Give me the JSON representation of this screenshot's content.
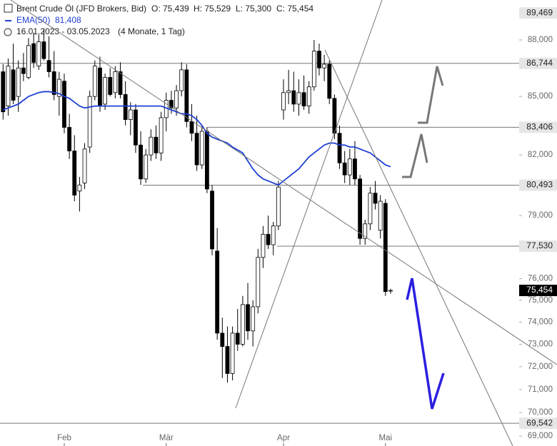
{
  "header": {
    "instrument": "Brent Crude Öl (JFD Brokers, Bid)",
    "open": "O: 75,439",
    "high": "H: 75,529",
    "low": "L: 75,300",
    "close": "C: 75,454",
    "range": "16.01.2023 - 03.05.2023",
    "span": "(4 Monate, 1 Tag)"
  },
  "chart_data": {
    "type": "candlestick",
    "log_scale": true,
    "ylim": [
      68578,
      90186
    ],
    "yticks": [
      {
        "value": 69000,
        "label": "69,000"
      },
      {
        "value": 70000,
        "label": "70,000"
      },
      {
        "value": 71000,
        "label": "71,000"
      },
      {
        "value": 72000,
        "label": "72,000"
      },
      {
        "value": 73000,
        "label": "73,000"
      },
      {
        "value": 74000,
        "label": "74,000"
      },
      {
        "value": 75000,
        "label": "75,000"
      },
      {
        "value": 76000,
        "label": "76,000"
      },
      {
        "value": 79000,
        "label": "79,000"
      },
      {
        "value": 82000,
        "label": "82,000"
      },
      {
        "value": 85000,
        "label": "85,000"
      },
      {
        "value": 88000,
        "label": "88,000"
      }
    ],
    "categories": [
      null,
      null,
      null,
      null,
      null,
      null,
      null,
      null,
      null,
      null,
      null,
      null,
      "Feb",
      null,
      null,
      null,
      null,
      null,
      null,
      null,
      null,
      null,
      null,
      null,
      null,
      null,
      null,
      null,
      null,
      null,
      null,
      null,
      "Mär",
      null,
      null,
      null,
      null,
      null,
      null,
      null,
      null,
      null,
      null,
      null,
      null,
      null,
      null,
      null,
      null,
      null,
      null,
      null,
      null,
      null,
      null,
      "Apr",
      null,
      null,
      null,
      null,
      null,
      null,
      null,
      null,
      null,
      null,
      null,
      null,
      null,
      null,
      null,
      null,
      null,
      null,
      null,
      "Mai",
      null
    ],
    "series": [
      {
        "name": "Brent Crude Öl (JFD Brokers, Bid)",
        "open": [
          86300,
          84500,
          86400,
          85000,
          86500,
          86000,
          87800,
          86600,
          87900,
          86900,
          86300,
          85000,
          85800,
          83400,
          82200,
          80200,
          80600,
          82400,
          85000,
          86500,
          84600,
          86000,
          85200,
          86300,
          85100,
          83800,
          84300,
          82500,
          80800,
          82000,
          82900,
          82100,
          83900,
          84800,
          84400,
          85300,
          86400,
          83700,
          83100,
          81500,
          83200,
          80200,
          77300,
          73500,
          72900,
          71700,
          73500,
          73000,
          74800,
          73600,
          74700,
          77000,
          78100,
          77600,
          78500,
          84300,
          85200,
          85300,
          84600,
          85200,
          84500,
          85500,
          87400,
          86500,
          86700,
          84900,
          83100,
          81600,
          81000,
          81800,
          80800,
          77900,
          78600,
          80100,
          78300,
          79600,
          75439
        ],
        "high": [
          86700,
          87000,
          87800,
          86900,
          87300,
          88100,
          88400,
          88300,
          88600,
          88200,
          87400,
          86300,
          86200,
          84100,
          83000,
          80900,
          82600,
          85300,
          86900,
          87100,
          86200,
          86500,
          86600,
          86800,
          85800,
          84700,
          84600,
          83200,
          82300,
          83300,
          83500,
          84200,
          85200,
          85300,
          85600,
          86800,
          86700,
          84600,
          84000,
          83500,
          83400,
          80500,
          78400,
          74200,
          73800,
          73800,
          74600,
          75200,
          75800,
          75000,
          77400,
          78500,
          79000,
          78700,
          80700,
          85900,
          86400,
          86300,
          85900,
          86100,
          85800,
          88000,
          87800,
          87200,
          86900,
          85100,
          83500,
          82200,
          82300,
          82700,
          81000,
          78800,
          80400,
          80700,
          80000,
          79800,
          75529
        ],
        "low": [
          83800,
          84000,
          84600,
          84200,
          85800,
          85900,
          86500,
          86400,
          86900,
          86000,
          84800,
          84000,
          83100,
          81800,
          79700,
          79200,
          80300,
          82100,
          84800,
          84200,
          84300,
          85000,
          84900,
          84900,
          83500,
          83000,
          82100,
          80500,
          80600,
          81700,
          81800,
          81700,
          83200,
          84100,
          84000,
          85000,
          83400,
          82700,
          81200,
          81300,
          80100,
          77100,
          73200,
          71500,
          71300,
          71400,
          72700,
          72900,
          73200,
          72900,
          74400,
          76500,
          77400,
          77100,
          78300,
          83800,
          84600,
          84200,
          84000,
          84300,
          84100,
          85300,
          86100,
          85800,
          84600,
          82800,
          81300,
          80600,
          80500,
          80500,
          77600,
          77600,
          78300,
          79300,
          77900,
          75200,
          75300
        ],
        "close": [
          84200,
          86600,
          84800,
          86500,
          86200,
          87700,
          86800,
          87900,
          87000,
          86300,
          85100,
          85900,
          83400,
          82200,
          80000,
          80500,
          82300,
          85000,
          86600,
          84500,
          86000,
          85100,
          86300,
          85100,
          83800,
          84300,
          82500,
          80800,
          82000,
          82900,
          82100,
          83900,
          84800,
          84400,
          85300,
          86400,
          83700,
          83100,
          81500,
          83200,
          80300,
          77400,
          73500,
          72900,
          71700,
          73500,
          73000,
          74800,
          73600,
          74700,
          77000,
          78100,
          77600,
          78500,
          80400,
          85200,
          85300,
          84600,
          85200,
          84500,
          85500,
          87400,
          86500,
          86700,
          84900,
          83100,
          81600,
          81000,
          81800,
          80800,
          77900,
          78600,
          80100,
          79600,
          79700,
          75400,
          75454
        ],
        "last_label": "75,454"
      },
      {
        "name": "EMA(50)",
        "color": "#1f3fd4",
        "last_label": "81,408",
        "values": [
          84300,
          84400,
          84500,
          84600,
          84800,
          85000,
          85100,
          85200,
          85250,
          85250,
          85200,
          85150,
          85000,
          84900,
          84700,
          84500,
          84400,
          84450,
          84500,
          84500,
          84500,
          84500,
          84500,
          84500,
          84500,
          84500,
          84500,
          84500,
          84500,
          84500,
          84500,
          84500,
          84400,
          84300,
          84200,
          84100,
          84100,
          84000,
          83800,
          83500,
          83100,
          82900,
          82800,
          82700,
          82600,
          82400,
          82250,
          82100,
          81700,
          81300,
          81000,
          80800,
          80700,
          80600,
          80500,
          80700,
          80900,
          81100,
          81300,
          81600,
          81900,
          82100,
          82300,
          82500,
          82600,
          82600,
          82500,
          82500,
          82400,
          82400,
          82300,
          82200,
          82100,
          81900,
          81700,
          81500,
          81408
        ]
      }
    ],
    "levels": [
      {
        "value": 89469,
        "label": "89,469"
      },
      {
        "value": 86744,
        "label": "86,744"
      },
      {
        "value": 83406,
        "label": "83,406"
      },
      {
        "value": 80493,
        "label": "80,493"
      },
      {
        "value": 77530,
        "label": "77,530"
      },
      {
        "value": 69542,
        "label": "69,542"
      }
    ]
  }
}
